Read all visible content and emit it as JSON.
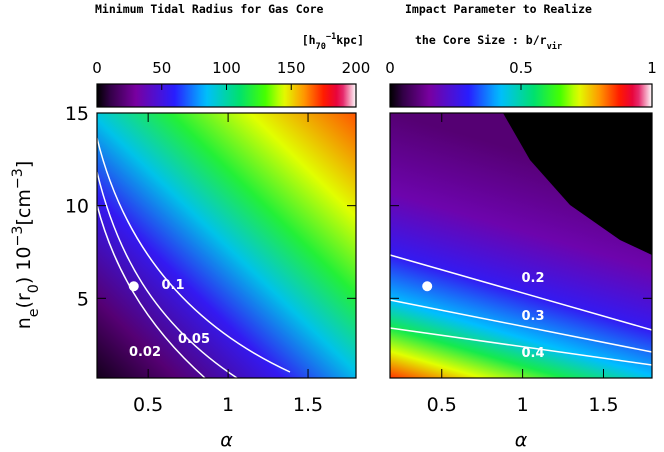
{
  "chart_data": [
    {
      "type": "heatmap",
      "title": "Minimum Tidal Radius for Gas Core",
      "subtitle": [
        {
          "text": "[h"
        },
        {
          "text": "70",
          "shift": "sub"
        },
        {
          "text": "−1",
          "shift": "sup"
        },
        {
          "text": "kpc]"
        }
      ],
      "colorbar": {
        "lim": [
          0,
          200
        ],
        "ticks": [
          0,
          50,
          100,
          150,
          200
        ]
      },
      "xlabel": "α",
      "xlim": [
        0.18,
        1.8
      ],
      "xticks": [
        0.5,
        1,
        1.5
      ],
      "ylabel": [
        {
          "text": "n"
        },
        {
          "text": "e",
          "shift": "sub"
        },
        {
          "text": "(r"
        },
        {
          "text": "0",
          "shift": "sub"
        },
        {
          "text": ")  10"
        },
        {
          "text": "−3",
          "shift": "sup"
        },
        {
          "text": "[cm"
        },
        {
          "text": "−3",
          "shift": "sup"
        },
        {
          "text": "]"
        }
      ],
      "ylim": [
        0.7,
        15
      ],
      "yticks": [
        5,
        10,
        15
      ],
      "contours": [
        0.02,
        0.05,
        0.1
      ],
      "point": {
        "x": 0.41,
        "y": 5.65
      }
    },
    {
      "type": "heatmap",
      "title": "Impact Parameter to Realize",
      "subtitle": [
        {
          "text": "the Core Size : b/r"
        },
        {
          "text": "vir",
          "shift": "sub"
        }
      ],
      "colorbar": {
        "lim": [
          0,
          1
        ],
        "ticks": [
          0,
          0.5,
          1
        ]
      },
      "xlabel": "α",
      "xlim": [
        0.18,
        1.8
      ],
      "xticks": [
        0.5,
        1,
        1.5
      ],
      "ylim": [
        0.7,
        15
      ],
      "yticks": [
        5,
        10,
        15
      ],
      "contours": [
        0.2,
        0.3,
        0.4
      ],
      "point": {
        "x": 0.41,
        "y": 5.65
      }
    }
  ]
}
